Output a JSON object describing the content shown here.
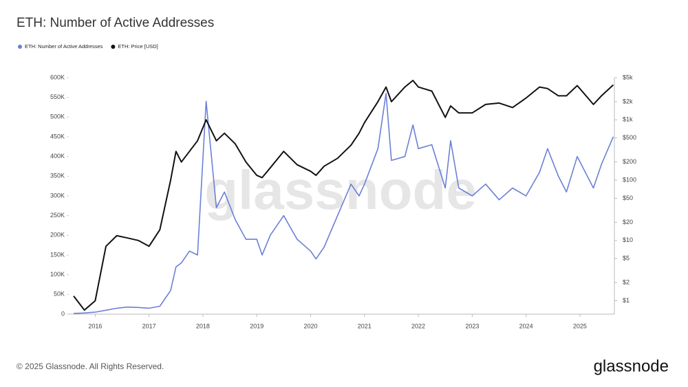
{
  "chart_data": {
    "type": "line",
    "title": "ETH: Number of Active Addresses",
    "footer": "© 2025 Glassnode. All Rights Reserved.",
    "brand": "glassnode",
    "x": [
      2015.6,
      2015.8,
      2016.0,
      2016.2,
      2016.4,
      2016.6,
      2016.8,
      2017.0,
      2017.2,
      2017.4,
      2017.5,
      2017.6,
      2017.75,
      2017.9,
      2018.06,
      2018.25,
      2018.4,
      2018.6,
      2018.8,
      2019.0,
      2019.1,
      2019.25,
      2019.5,
      2019.75,
      2020.0,
      2020.1,
      2020.25,
      2020.5,
      2020.75,
      2020.9,
      2021.0,
      2021.25,
      2021.4,
      2021.5,
      2021.75,
      2021.9,
      2022.0,
      2022.25,
      2022.5,
      2022.6,
      2022.75,
      2023.0,
      2023.25,
      2023.5,
      2023.75,
      2024.0,
      2024.25,
      2024.4,
      2024.6,
      2024.75,
      2024.95,
      2025.25,
      2025.4,
      2025.62
    ],
    "series": [
      {
        "name": "ETH: Number of Active Addresses",
        "color": "#6b7fd7",
        "values": [
          2000,
          3000,
          5000,
          10000,
          15000,
          18000,
          17000,
          15000,
          20000,
          60000,
          120000,
          130000,
          160000,
          150000,
          540000,
          270000,
          310000,
          240000,
          190000,
          190000,
          150000,
          200000,
          250000,
          190000,
          160000,
          140000,
          170000,
          250000,
          330000,
          300000,
          330000,
          420000,
          560000,
          390000,
          400000,
          480000,
          420000,
          430000,
          320000,
          440000,
          320000,
          300000,
          330000,
          290000,
          320000,
          300000,
          360000,
          420000,
          350000,
          310000,
          400000,
          320000,
          380000,
          450000
        ]
      },
      {
        "name": "ETH: Price [USD]",
        "color": "#111111",
        "axis": "y2",
        "values": [
          1.2,
          0.7,
          1,
          8,
          12,
          11,
          10,
          8,
          15,
          100,
          300,
          200,
          300,
          450,
          1000,
          450,
          600,
          400,
          200,
          120,
          110,
          160,
          300,
          180,
          140,
          120,
          170,
          230,
          380,
          600,
          900,
          2000,
          3500,
          2000,
          3500,
          4500,
          3500,
          3000,
          1100,
          1700,
          1300,
          1300,
          1800,
          1900,
          1600,
          2300,
          3500,
          3300,
          2500,
          2500,
          3700,
          1800,
          2500,
          3800
        ]
      }
    ],
    "xlim": [
      2015.51,
      2025.64
    ],
    "xticks": [
      2016,
      2017,
      2018,
      2019,
      2020,
      2021,
      2022,
      2023,
      2024,
      2025
    ],
    "ylim": [
      0,
      600000
    ],
    "yticks": [
      0,
      {
        "value": 50000,
        "label": "50K"
      },
      {
        "value": 100000,
        "label": "100K"
      },
      {
        "value": 150000,
        "label": "150K"
      },
      {
        "value": 200000,
        "label": "200K"
      },
      {
        "value": 250000,
        "label": "250K"
      },
      {
        "value": 300000,
        "label": "300K"
      },
      {
        "value": 350000,
        "label": "350K"
      },
      {
        "value": 400000,
        "label": "400K"
      },
      {
        "value": 450000,
        "label": "450K"
      },
      {
        "value": 500000,
        "label": "500K"
      },
      {
        "value": 550000,
        "label": "550K"
      },
      {
        "value": 600000,
        "label": "600K"
      }
    ],
    "y2lim": [
      0.6,
      5000
    ],
    "y2_log": true,
    "y2ticks": [
      {
        "value": 1,
        "label": "$1"
      },
      {
        "value": 2,
        "label": "$2"
      },
      {
        "value": 5,
        "label": "$5"
      },
      {
        "value": 10,
        "label": "$10"
      },
      {
        "value": 20,
        "label": "$20"
      },
      {
        "value": 50,
        "label": "$50"
      },
      {
        "value": 100,
        "label": "$100"
      },
      {
        "value": 200,
        "label": "$200"
      },
      {
        "value": 500,
        "label": "$500"
      },
      {
        "value": 1000,
        "label": "$1k"
      },
      {
        "value": 2000,
        "label": "$2k"
      },
      {
        "value": 5000,
        "label": "$5k"
      }
    ]
  }
}
